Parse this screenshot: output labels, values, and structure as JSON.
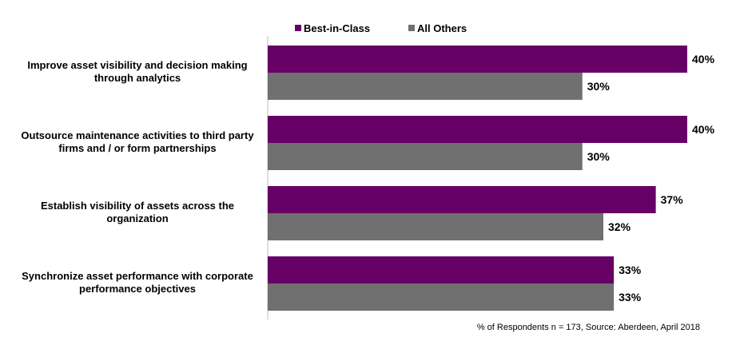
{
  "chart_data": {
    "type": "bar",
    "orientation": "horizontal",
    "categories": [
      [
        "Improve asset visibility and decision making",
        "through analytics"
      ],
      [
        "Outsource maintenance activities to third party",
        "firms and / or form partnerships"
      ],
      [
        "Establish visibility of assets across the",
        "organization"
      ],
      [
        "Synchronize asset performance with corporate",
        "performance objectives"
      ]
    ],
    "series": [
      {
        "name": "Best-in-Class",
        "color": "#660066",
        "values": [
          40,
          40,
          37,
          33
        ],
        "labels": [
          "40%",
          "40%",
          "37%",
          "33%"
        ]
      },
      {
        "name": "All Others",
        "color": "#707070",
        "values": [
          30,
          30,
          32,
          33
        ],
        "labels": [
          "30%",
          "30%",
          "32%",
          "33%"
        ]
      }
    ],
    "xlim": [
      0,
      40
    ],
    "grid": false,
    "legend_position": "top"
  },
  "footer": {
    "source": "% of Respondents n = 173, Source: Aberdeen, April 2018"
  }
}
